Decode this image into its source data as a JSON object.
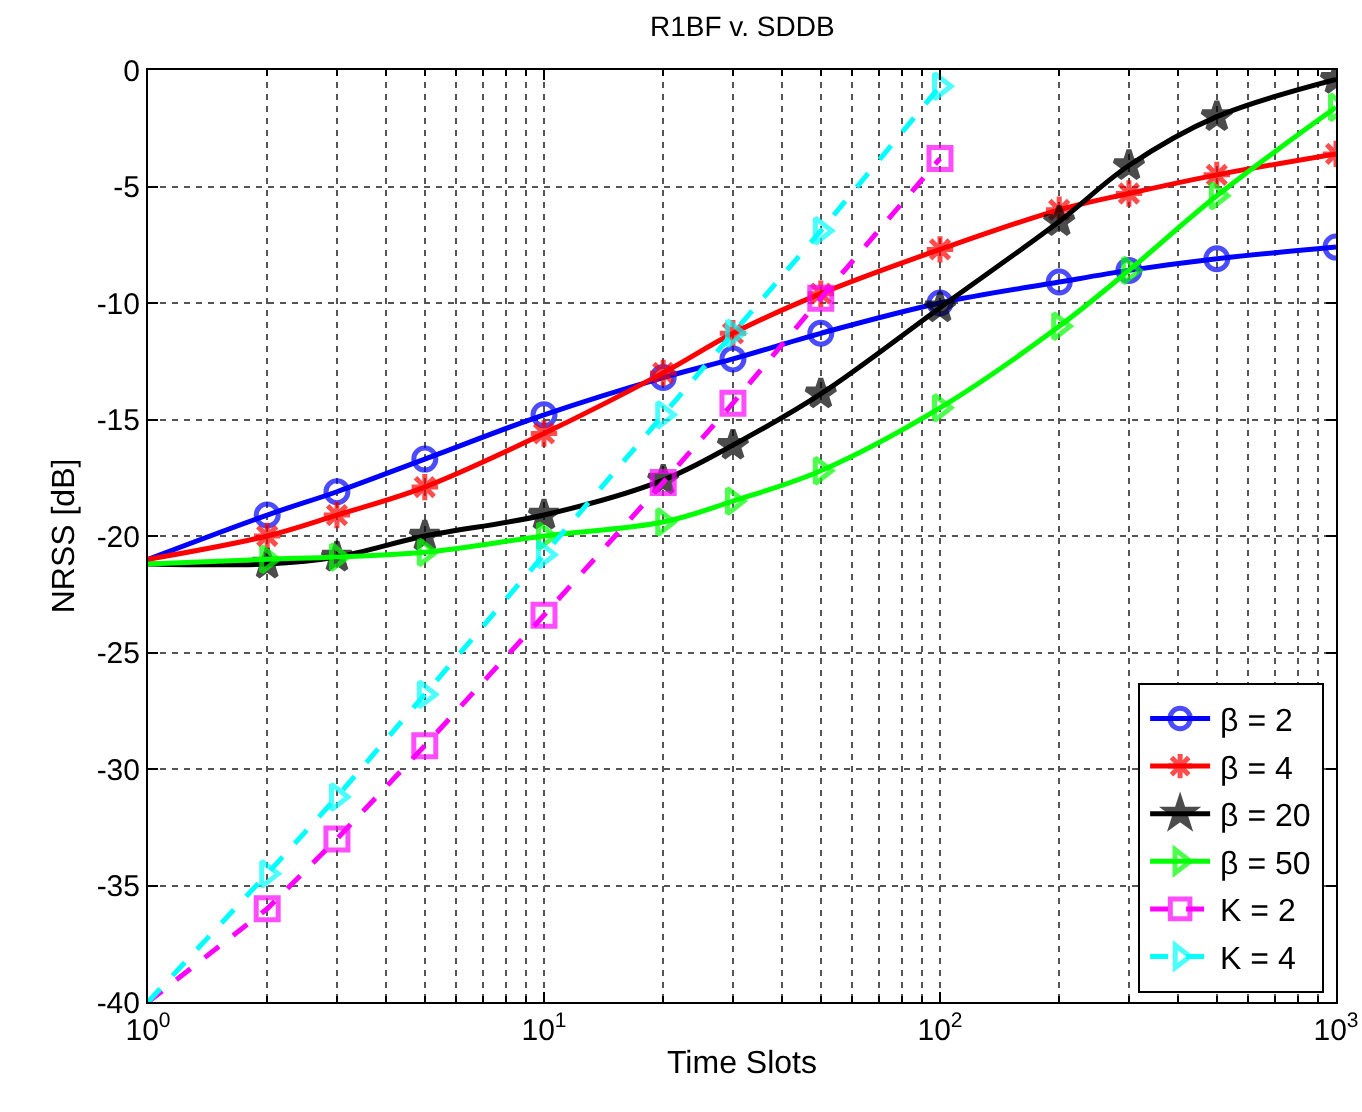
{
  "chart_data": {
    "type": "line",
    "title": "R1BF v. SDDB",
    "xlabel": "Time Slots",
    "ylabel": "NRSS [dB]",
    "log": "x",
    "grid": true,
    "legend": "bottom right",
    "xlim": [
      1,
      1000
    ],
    "xticks": [
      {
        "value": 1,
        "label": "10$^{0}$"
      },
      {
        "value": 10,
        "label": "10$^{1}$"
      },
      {
        "value": 100,
        "label": "10$^{2}$"
      },
      {
        "value": 1000,
        "label": "10$^{3}$"
      }
    ],
    "ylim": [
      -40,
      0
    ],
    "yticks": [
      -40,
      -35,
      -30,
      -25,
      -20,
      -15,
      -10,
      -5,
      0
    ],
    "series": [
      {
        "name": "β = 2",
        "color": "#0000ff",
        "marker": "circle",
        "line_style": "solid",
        "x": [
          1,
          2,
          3,
          5,
          10,
          20,
          30,
          50,
          100,
          200,
          300,
          500,
          1000
        ],
        "values": [
          -21,
          -19.1,
          -18.1,
          -16.7,
          -14.8,
          -13.2,
          -12.4,
          -11.3,
          -10,
          -9.1,
          -8.6,
          -8.1,
          -7.6
        ]
      },
      {
        "name": "β = 4",
        "color": "#ff0000",
        "marker": "cross",
        "line_style": "solid",
        "x": [
          1,
          2,
          3,
          5,
          10,
          20,
          30,
          50,
          100,
          200,
          300,
          500,
          1000
        ],
        "values": [
          -21,
          -20,
          -19.1,
          -17.9,
          -15.6,
          -13,
          -11.3,
          -9.6,
          -7.7,
          -6,
          -5.3,
          -4.5,
          -3.6
        ]
      },
      {
        "name": "β = 20",
        "color": "#000000",
        "marker": "star",
        "line_style": "solid",
        "x": [
          1,
          2,
          3,
          5,
          10,
          20,
          30,
          50,
          100,
          200,
          300,
          500,
          1000
        ],
        "values": [
          -21.2,
          -21.2,
          -20.9,
          -20,
          -19.1,
          -17.6,
          -16.1,
          -13.9,
          -10.2,
          -6.5,
          -4.1,
          -2,
          -0.4
        ]
      },
      {
        "name": "β = 50",
        "color": "#00ff00",
        "marker": "triangle",
        "line_style": "solid",
        "x": [
          1,
          2,
          3,
          5,
          10,
          20,
          30,
          50,
          100,
          200,
          300,
          500,
          1000
        ],
        "values": [
          -21.2,
          -21,
          -20.9,
          -20.7,
          -20,
          -19.4,
          -18.5,
          -17.2,
          -14.5,
          -11,
          -8.6,
          -5.4,
          -1.6
        ]
      },
      {
        "name": "K = 2",
        "color": "#ff00ff",
        "marker": "square",
        "line_style": "dashed",
        "x": [
          1,
          2,
          3,
          5,
          10,
          20,
          30,
          50,
          100
        ],
        "values": [
          -40,
          -36,
          -33,
          -29,
          -23.4,
          -17.7,
          -14.3,
          -9.8,
          -3.8
        ]
      },
      {
        "name": "K = 4",
        "color": "#00ffff",
        "marker": "triangle",
        "line_style": "dashed",
        "x": [
          1,
          2,
          3,
          5,
          10,
          20,
          30,
          50,
          100
        ],
        "values": [
          -40,
          -34.5,
          -31.2,
          -26.8,
          -20.8,
          -14.8,
          -11.3,
          -6.9,
          -0.7
        ]
      }
    ]
  }
}
